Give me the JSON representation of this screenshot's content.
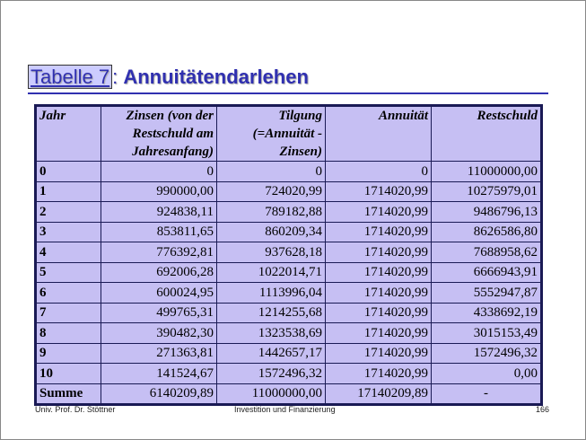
{
  "title": {
    "label": "Tabelle 7",
    "separator": ":",
    "text": "Annuitätendarlehen"
  },
  "table": {
    "header": [
      [
        "Jahr"
      ],
      [
        "Zinsen (von der",
        "Restschuld am",
        "Jahresanfang)"
      ],
      [
        "Tilgung",
        "(=Annuität -",
        "Zinsen)"
      ],
      [
        "Annuität"
      ],
      [
        "Restschuld"
      ]
    ],
    "rows": [
      [
        "0",
        "0",
        "0",
        "0",
        "11000000,00"
      ],
      [
        "1",
        "990000,00",
        "724020,99",
        "1714020,99",
        "10275979,01"
      ],
      [
        "2",
        "924838,11",
        "789182,88",
        "1714020,99",
        "9486796,13"
      ],
      [
        "3",
        "853811,65",
        "860209,34",
        "1714020,99",
        "8626586,80"
      ],
      [
        "4",
        "776392,81",
        "937628,18",
        "1714020,99",
        "7688958,62"
      ],
      [
        "5",
        "692006,28",
        "1022014,71",
        "1714020,99",
        "6666943,91"
      ],
      [
        "6",
        "600024,95",
        "1113996,04",
        "1714020,99",
        "5552947,87"
      ],
      [
        "7",
        "499765,31",
        "1214255,68",
        "1714020,99",
        "4338692,19"
      ],
      [
        "8",
        "390482,30",
        "1323538,69",
        "1714020,99",
        "3015153,49"
      ],
      [
        "9",
        "271363,81",
        "1442657,17",
        "1714020,99",
        "1572496,32"
      ],
      [
        "10",
        "141524,67",
        "1572496,32",
        "1714020,99",
        "0,00"
      ],
      [
        "Summe",
        "6140209,89",
        "11000000,00",
        "17140209,89",
        "-"
      ]
    ]
  },
  "footer": {
    "author": "Univ. Prof. Dr. Stöttner",
    "course": "Investition und Finanzierung",
    "page": "166"
  }
}
